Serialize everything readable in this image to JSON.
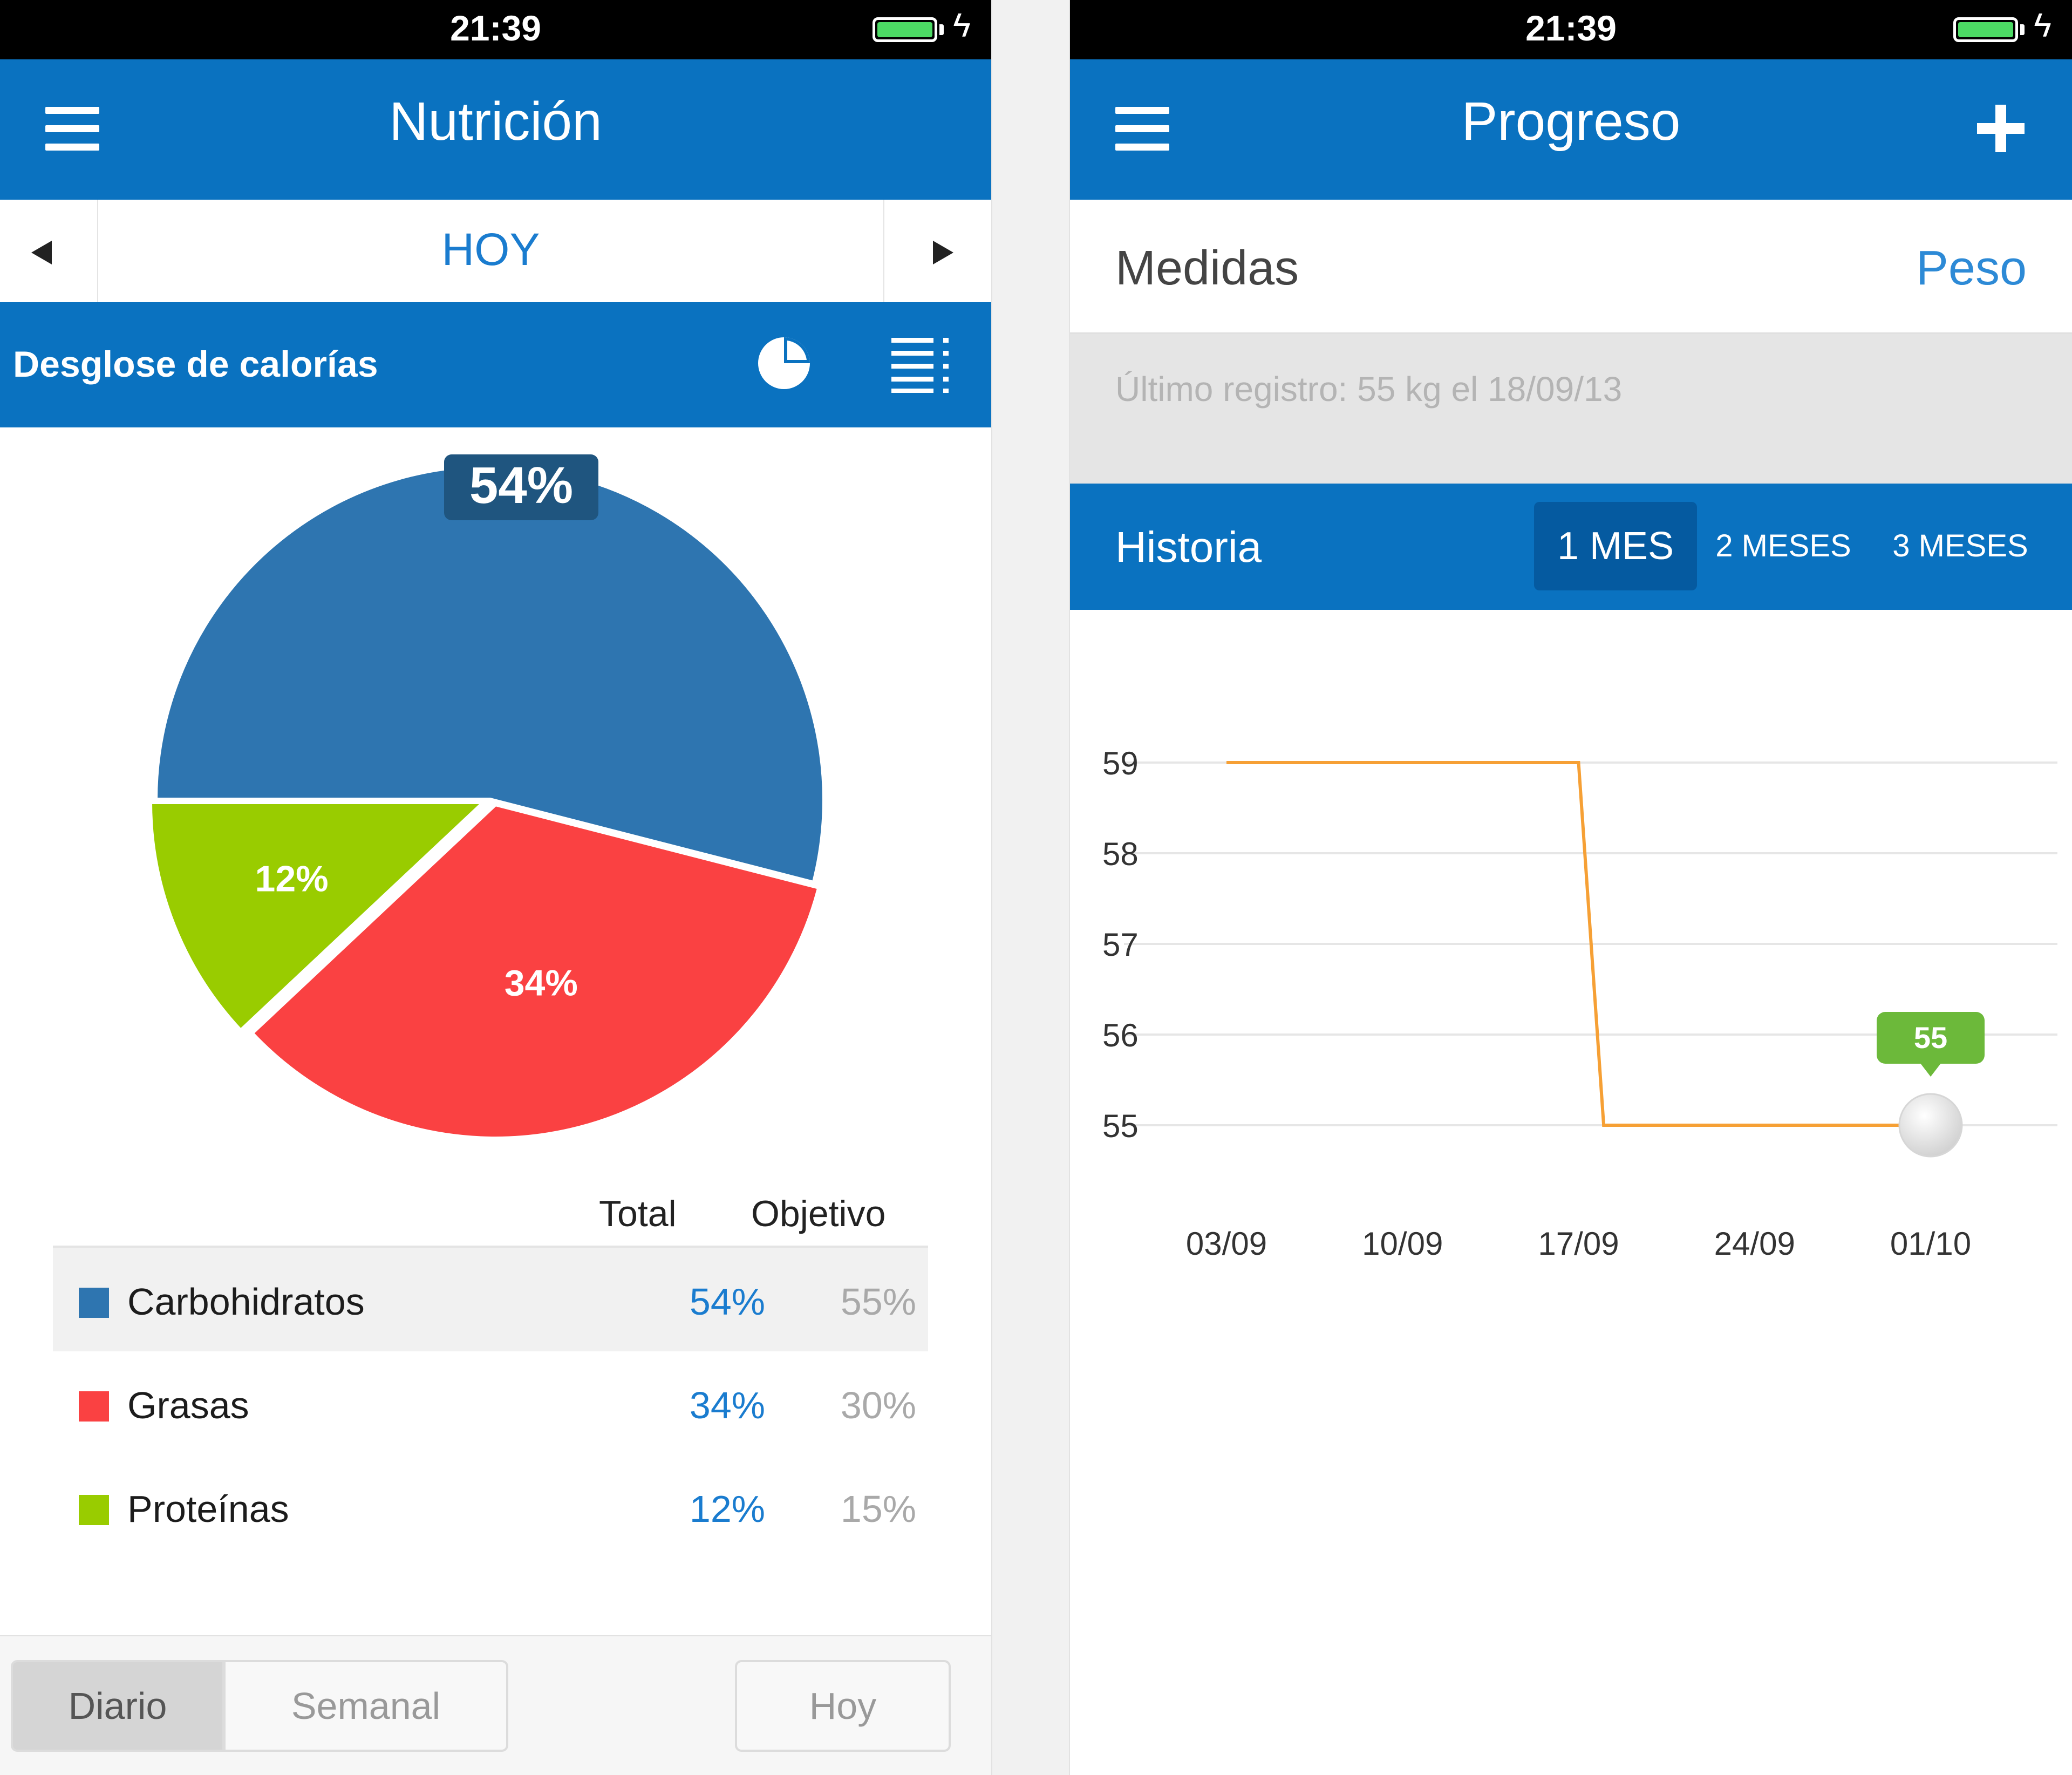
{
  "left_screen": {
    "status": {
      "time": "21:39"
    },
    "nav": {
      "title": "Nutrición"
    },
    "date_nav": {
      "label": "HOY"
    },
    "section": {
      "title": "Desglose de calorías"
    },
    "chart_data": {
      "type": "pie",
      "slices": [
        {
          "name": "Carbohidratos",
          "value": 54,
          "label": "54%",
          "color": "#2e75b0"
        },
        {
          "name": "Grasas",
          "value": 34,
          "label": "34%",
          "color": "#fa4142"
        },
        {
          "name": "Proteínas",
          "value": 12,
          "label": "12%",
          "color": "#99cc00"
        }
      ]
    },
    "legend": {
      "header_total": "Total",
      "header_goal": "Objetivo",
      "rows": [
        {
          "label": "Carbohidratos",
          "total": "54%",
          "goal": "55%",
          "color": "#2e75b0"
        },
        {
          "label": "Grasas",
          "total": "34%",
          "goal": "30%",
          "color": "#fa4142"
        },
        {
          "label": "Proteínas",
          "total": "12%",
          "goal": "15%",
          "color": "#99cc00"
        }
      ]
    },
    "bottom": {
      "daily": "Diario",
      "weekly": "Semanal",
      "today": "Hoy"
    }
  },
  "right_screen": {
    "status": {
      "time": "21:39"
    },
    "nav": {
      "title": "Progreso"
    },
    "measures": {
      "label": "Medidas",
      "metric": "Peso"
    },
    "last_record": "Último registro: 55 kg el 18/09/13",
    "history": {
      "title": "Historia",
      "range_1": "1 MES",
      "range_2": "2 MESES",
      "range_3": "3 MESES"
    },
    "chart_data": {
      "type": "line",
      "x_ticks": [
        "03/09",
        "10/09",
        "17/09",
        "24/09",
        "01/10"
      ],
      "y_ticks": [
        55,
        56,
        57,
        58,
        59
      ],
      "ylim": [
        55,
        59
      ],
      "series": [
        {
          "color": "#f6a035",
          "points": [
            {
              "x": "03/09",
              "y": 59
            },
            {
              "x": "17/09",
              "y": 59
            },
            {
              "x": "18/09",
              "y": 55
            },
            {
              "x": "01/10",
              "y": 55
            }
          ]
        }
      ],
      "callout": {
        "x": "01/10",
        "y": 55,
        "label": "55",
        "color": "#6cb93a"
      }
    }
  }
}
